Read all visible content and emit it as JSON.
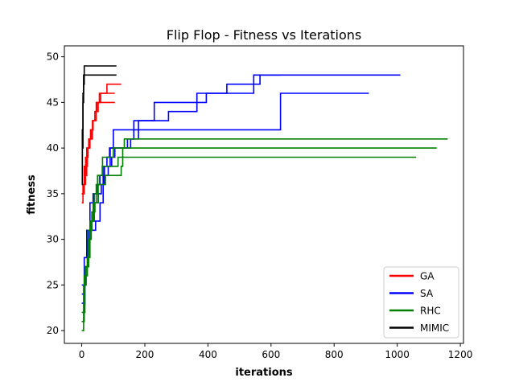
{
  "chart_data": {
    "type": "line",
    "title": "Flip Flop - Fitness vs Iterations",
    "xlabel": "iterations",
    "ylabel": "fitness",
    "xlim": [
      -55,
      1210
    ],
    "ylim": [
      18.6,
      51.2
    ],
    "xticks": [
      0,
      200,
      400,
      600,
      800,
      1000,
      1200
    ],
    "yticks": [
      20,
      25,
      30,
      35,
      40,
      45,
      50
    ],
    "grid": false,
    "legend_position": "lower-right",
    "series": [
      {
        "name": "GA",
        "color": "#ff0000",
        "runs": [
          [
            [
              0,
              34
            ],
            [
              4,
              36
            ],
            [
              8,
              38
            ],
            [
              14,
              38
            ],
            [
              18,
              40
            ],
            [
              24,
              41
            ],
            [
              30,
              42
            ],
            [
              36,
              43
            ],
            [
              42,
              44
            ],
            [
              48,
              45
            ],
            [
              56,
              46
            ],
            [
              75,
              46
            ],
            [
              80,
              47
            ],
            [
              125,
              47
            ]
          ],
          [
            [
              0,
              35
            ],
            [
              6,
              36
            ],
            [
              12,
              39
            ],
            [
              20,
              40
            ],
            [
              26,
              41
            ],
            [
              34,
              43
            ],
            [
              42,
              44
            ],
            [
              52,
              45
            ],
            [
              105,
              45
            ]
          ],
          [
            [
              0,
              35
            ],
            [
              8,
              37
            ],
            [
              16,
              40
            ],
            [
              22,
              41
            ],
            [
              28,
              42
            ],
            [
              36,
              43
            ],
            [
              46,
              45
            ],
            [
              60,
              46
            ],
            [
              105,
              46
            ]
          ]
        ]
      },
      {
        "name": "SA",
        "color": "#0000ff",
        "runs": [
          [
            [
              0,
              23
            ],
            [
              10,
              27
            ],
            [
              18,
              29
            ],
            [
              24,
              31
            ],
            [
              32,
              32
            ],
            [
              40,
              34
            ],
            [
              52,
              35
            ],
            [
              62,
              36
            ],
            [
              72,
              38
            ],
            [
              90,
              40
            ],
            [
              100,
              42
            ],
            [
              175,
              42
            ],
            [
              180,
              43
            ],
            [
              270,
              43
            ],
            [
              275,
              44
            ],
            [
              360,
              44
            ],
            [
              365,
              46
            ],
            [
              540,
              46
            ],
            [
              545,
              48
            ],
            [
              1010,
              48
            ]
          ],
          [
            [
              0,
              24
            ],
            [
              8,
              28
            ],
            [
              16,
              31
            ],
            [
              26,
              34
            ],
            [
              36,
              35
            ],
            [
              48,
              36
            ],
            [
              58,
              37
            ],
            [
              70,
              38
            ],
            [
              80,
              39
            ],
            [
              88,
              40
            ],
            [
              150,
              40
            ],
            [
              155,
              41
            ],
            [
              165,
              43
            ],
            [
              225,
              43
            ],
            [
              230,
              45
            ],
            [
              390,
              45
            ],
            [
              395,
              46
            ],
            [
              455,
              46
            ],
            [
              460,
              47
            ],
            [
              560,
              47
            ],
            [
              565,
              48
            ],
            [
              630,
              48
            ]
          ],
          [
            [
              0,
              25
            ],
            [
              12,
              27
            ],
            [
              20,
              30
            ],
            [
              30,
              31
            ],
            [
              44,
              32
            ],
            [
              58,
              34
            ],
            [
              68,
              37
            ],
            [
              84,
              38
            ],
            [
              95,
              39
            ],
            [
              105,
              40
            ],
            [
              140,
              40
            ],
            [
              145,
              41
            ],
            [
              175,
              41
            ],
            [
              180,
              42
            ],
            [
              625,
              42
            ],
            [
              630,
              46
            ],
            [
              910,
              46
            ]
          ]
        ]
      },
      {
        "name": "RHC",
        "color": "#008000",
        "runs": [
          [
            [
              0,
              20
            ],
            [
              6,
              25
            ],
            [
              14,
              27
            ],
            [
              22,
              30
            ],
            [
              30,
              32
            ],
            [
              40,
              35
            ],
            [
              50,
              37
            ],
            [
              60,
              37
            ],
            [
              65,
              38
            ],
            [
              110,
              38
            ],
            [
              115,
              39
            ],
            [
              1060,
              39
            ]
          ],
          [
            [
              0,
              21
            ],
            [
              8,
              26
            ],
            [
              18,
              28
            ],
            [
              26,
              32
            ],
            [
              36,
              34
            ],
            [
              46,
              36
            ],
            [
              56,
              37
            ],
            [
              66,
              39
            ],
            [
              95,
              39
            ],
            [
              100,
              40
            ],
            [
              130,
              40
            ],
            [
              135,
              41
            ],
            [
              1160,
              41
            ]
          ],
          [
            [
              0,
              22
            ],
            [
              10,
              27
            ],
            [
              20,
              31
            ],
            [
              32,
              33
            ],
            [
              42,
              34
            ],
            [
              52,
              36
            ],
            [
              70,
              36
            ],
            [
              75,
              37
            ],
            [
              120,
              37
            ],
            [
              125,
              38
            ],
            [
              130,
              40
            ],
            [
              1125,
              40
            ]
          ]
        ]
      },
      {
        "name": "MIMIC",
        "color": "#000000",
        "runs": [
          [
            [
              0,
              36
            ],
            [
              2,
              40
            ],
            [
              4,
              45
            ],
            [
              6,
              47
            ],
            [
              8,
              48
            ],
            [
              110,
              48
            ]
          ],
          [
            [
              0,
              37
            ],
            [
              2,
              42
            ],
            [
              4,
              46
            ],
            [
              6,
              48
            ],
            [
              8,
              49
            ],
            [
              110,
              49
            ]
          ]
        ]
      }
    ]
  }
}
